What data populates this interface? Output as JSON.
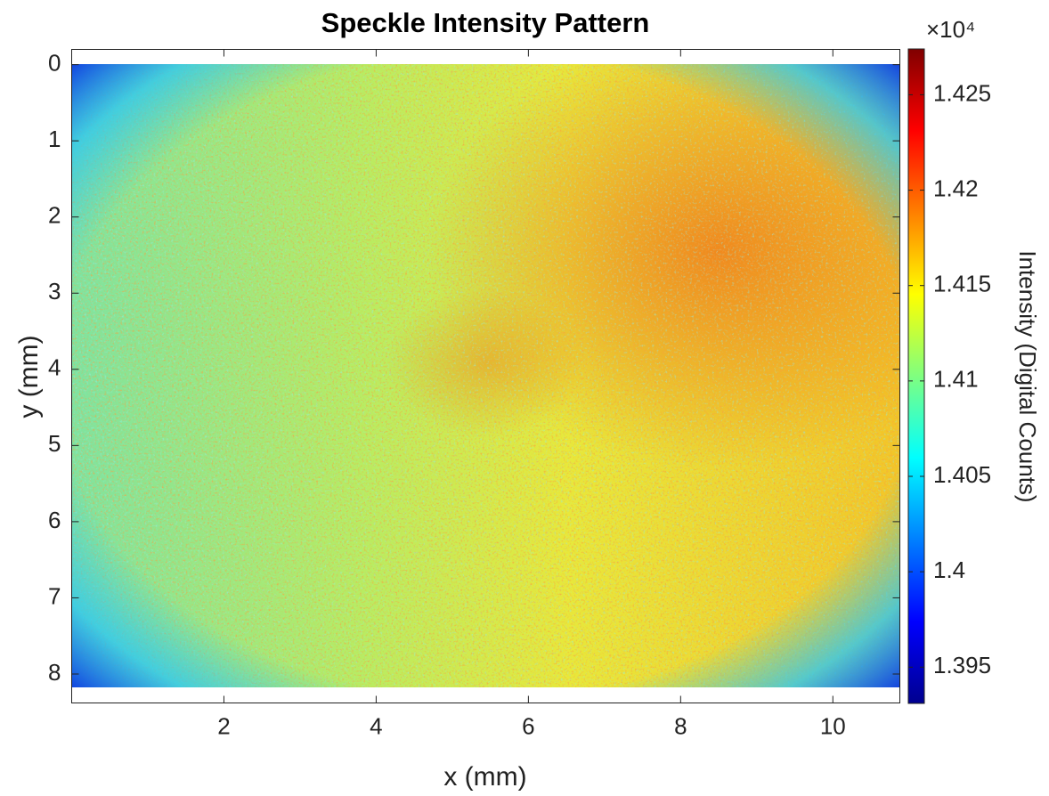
{
  "chart_data": {
    "type": "heatmap",
    "title": "Speckle Intensity Pattern",
    "x_label": "x (mm)",
    "y_label": "y (mm)",
    "xlim": [
      0,
      10.88
    ],
    "xticks": [
      2,
      4,
      6,
      8,
      10
    ],
    "ylim": [
      -0.2,
      8.38
    ],
    "yticks": [
      0,
      1,
      2,
      3,
      4,
      5,
      6,
      7,
      8
    ],
    "y_reversed": true,
    "colormap": "jet",
    "colorbar_label": "Intensity (Digital Counts)",
    "colorbar_multiplier": "×10⁴",
    "clim": [
      13931,
      14274
    ],
    "cticks": [
      {
        "value": 13950,
        "label": "1.395"
      },
      {
        "value": 14000,
        "label": "1.4"
      },
      {
        "value": 14050,
        "label": "1.405"
      },
      {
        "value": 14100,
        "label": "1.41"
      },
      {
        "value": 14150,
        "label": "1.415"
      },
      {
        "value": 14200,
        "label": "1.42"
      },
      {
        "value": 14250,
        "label": "1.425"
      }
    ]
  }
}
